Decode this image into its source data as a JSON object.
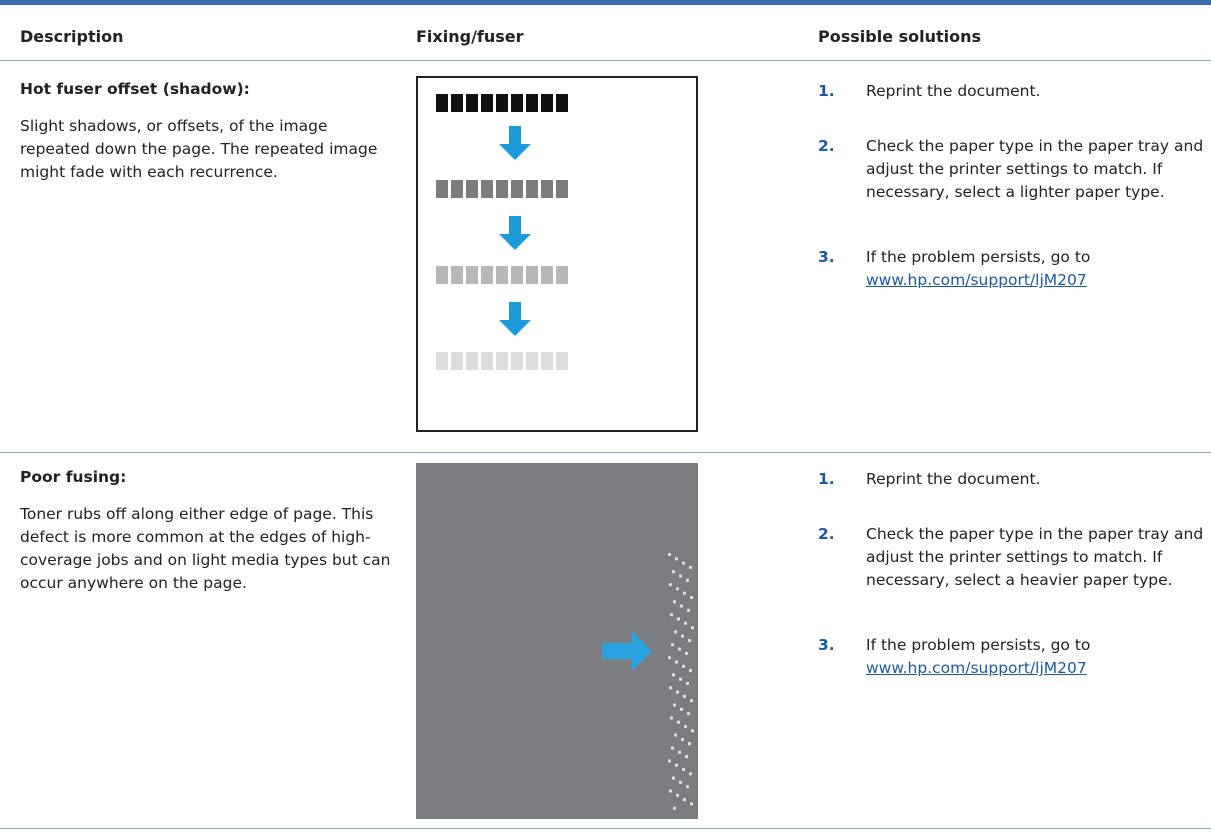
{
  "table": {
    "headers": [
      "Description",
      "Fixing/fuser",
      "Possible solutions"
    ],
    "rows": [
      {
        "title": "Hot fuser offset (shadow):",
        "description": "Slight shadows, or offsets, of the image repeated down the page. The repeated image might fade with each recurrence.",
        "solutions": [
          {
            "number": "1.",
            "text": "Reprint the document."
          },
          {
            "number": "2.",
            "text": "Check the paper type in the paper tray and adjust the printer settings to match. If necessary, select a lighter paper type."
          },
          {
            "number": "3.",
            "text": "If the problem persists, go to",
            "link": "www.hp.com/support/ljM207"
          }
        ]
      },
      {
        "title": "Poor fusing:",
        "description": "Toner rubs off along either edge of page. This defect is more common at the edges of high-coverage jobs and on light media types but can occur anywhere on the page.",
        "solutions": [
          {
            "number": "1.",
            "text": "Reprint the document."
          },
          {
            "number": "2.",
            "text": "Check the paper type in the paper tray and adjust the printer settings to match. If necessary, select a heavier paper type."
          },
          {
            "number": "3.",
            "text": "If the problem persists, go to",
            "link": "www.hp.com/support/ljM207"
          }
        ]
      }
    ]
  }
}
